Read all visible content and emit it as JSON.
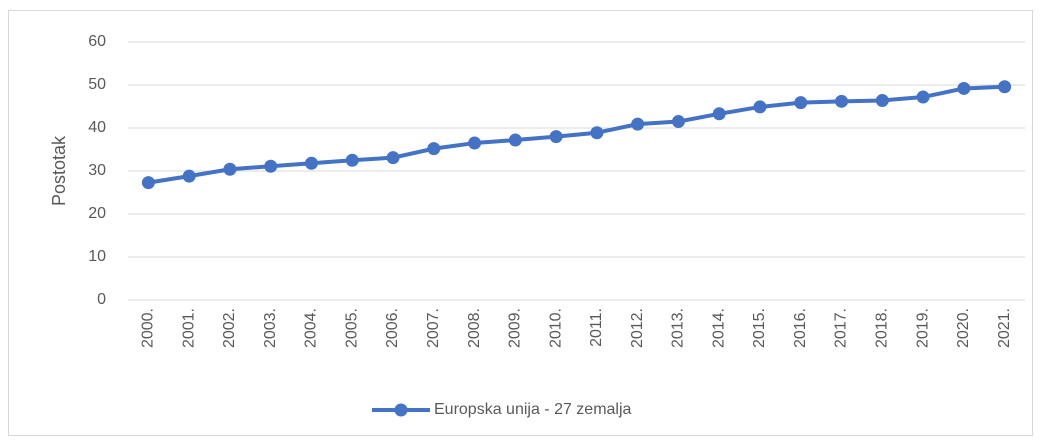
{
  "chart_data": {
    "type": "line",
    "y_label": "Postotak",
    "categories": [
      "2000.",
      "2001.",
      "2002.",
      "2003.",
      "2004.",
      "2005.",
      "2006.",
      "2007.",
      "2008.",
      "2009.",
      "2010.",
      "2011.",
      "2012.",
      "2013.",
      "2014.",
      "2015.",
      "2016.",
      "2017.",
      "2018.",
      "2019.",
      "2020.",
      "2021."
    ],
    "series": [
      {
        "name": "Europska unija - 27 zemalja",
        "color": "#4472c4",
        "values": [
          27.3,
          28.8,
          30.4,
          31.1,
          31.8,
          32.5,
          33.1,
          35.2,
          36.5,
          37.2,
          38.0,
          38.9,
          40.9,
          41.5,
          43.3,
          44.9,
          45.9,
          46.2,
          46.4,
          47.2,
          49.2,
          49.6
        ]
      }
    ],
    "ylim": [
      0,
      60
    ],
    "yticks": [
      0,
      10,
      20,
      30,
      40,
      50,
      60
    ],
    "grid": true,
    "legend": "bottom"
  }
}
